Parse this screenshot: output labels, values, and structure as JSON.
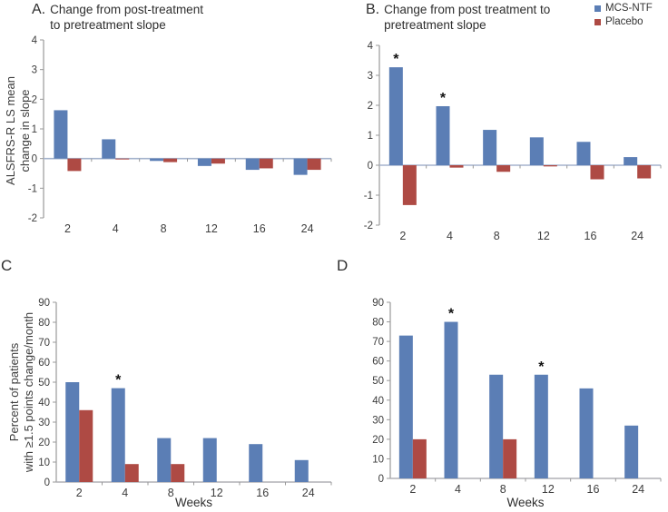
{
  "colors": {
    "mcs_ntf": "#5b7eb5",
    "placebo": "#ae4a44",
    "y_axis": "#999999",
    "zero_line_ab": "#a5b3cd",
    "axis_line_cd": "#b0b0b5",
    "star": "#111111"
  },
  "legend": {
    "items": [
      {
        "label": "MCS-NTF",
        "color": "#5b7eb5"
      },
      {
        "label": "Placebo",
        "color": "#ae4a44"
      }
    ]
  },
  "chart_data": [
    {
      "id": "A",
      "type": "bar",
      "letter": "A.",
      "title_lines": [
        "Change from post-treatment",
        "to pretreatment slope"
      ],
      "ylabel_lines": [
        "ALSFRS-R LS mean",
        "change in slope"
      ],
      "xlabel": "",
      "categories": [
        "2",
        "4",
        "8",
        "12",
        "16",
        "24"
      ],
      "ylim": [
        -2,
        4
      ],
      "yticks": [
        4,
        3,
        2,
        1,
        0,
        -1,
        -2
      ],
      "axis_color": "#a5b3cd",
      "legend_position": "none",
      "grid": false,
      "series": [
        {
          "name": "MCS-NTF",
          "values": [
            1.63,
            0.65,
            -0.08,
            -0.25,
            -0.38,
            -0.55
          ],
          "star_indices": []
        },
        {
          "name": "Placebo",
          "values": [
            -0.42,
            -0.03,
            -0.12,
            -0.17,
            -0.33,
            -0.38
          ],
          "star_indices": []
        }
      ]
    },
    {
      "id": "B",
      "type": "bar",
      "letter": "B.",
      "title_lines": [
        "Change from post treatment to",
        "pretreatment slope"
      ],
      "ylabel_lines": [],
      "xlabel": "",
      "categories": [
        "2",
        "4",
        "8",
        "12",
        "16",
        "24"
      ],
      "ylim": [
        -2,
        4
      ],
      "yticks": [
        4,
        3,
        2,
        1,
        0,
        -1,
        -2
      ],
      "axis_color": "#a5b3cd",
      "legend_position": "top-right",
      "grid": false,
      "series": [
        {
          "name": "MCS-NTF",
          "values": [
            3.27,
            1.97,
            1.18,
            0.93,
            0.78,
            0.27
          ],
          "star_indices": [
            0,
            1
          ]
        },
        {
          "name": "Placebo",
          "values": [
            -1.33,
            -0.08,
            -0.22,
            -0.04,
            -0.47,
            -0.44
          ],
          "star_indices": []
        }
      ]
    },
    {
      "id": "C",
      "type": "bar",
      "letter": "C",
      "title_lines": [],
      "ylabel_lines": [
        "Percent of patients",
        "with ≥1.5 points change/month"
      ],
      "xlabel": "Weeks",
      "categories": [
        "2",
        "4",
        "8",
        "12",
        "16",
        "24"
      ],
      "ylim": [
        0,
        90
      ],
      "yticks": [
        90,
        80,
        70,
        60,
        50,
        40,
        30,
        20,
        10,
        0
      ],
      "axis_color": "#b0b0b5",
      "legend_position": "none",
      "grid": false,
      "series": [
        {
          "name": "MCS-NTF",
          "values": [
            50,
            47,
            22,
            22,
            19,
            11
          ],
          "star_indices": [
            1
          ]
        },
        {
          "name": "Placebo",
          "values": [
            36,
            9,
            9,
            0,
            0,
            0
          ],
          "star_indices": []
        }
      ]
    },
    {
      "id": "D",
      "type": "bar",
      "letter": "D",
      "title_lines": [],
      "ylabel_lines": [],
      "xlabel": "Weeks",
      "categories": [
        "2",
        "4",
        "8",
        "12",
        "16",
        "24"
      ],
      "ylim": [
        0,
        90
      ],
      "yticks": [
        90,
        80,
        70,
        60,
        50,
        40,
        30,
        20,
        10,
        0
      ],
      "axis_color": "#b0b0b5",
      "legend_position": "none",
      "grid": false,
      "series": [
        {
          "name": "MCS-NTF",
          "values": [
            73,
            80,
            53,
            53,
            46,
            27
          ],
          "star_indices": [
            1,
            3
          ]
        },
        {
          "name": "Placebo",
          "values": [
            20,
            0,
            20,
            0,
            0,
            0
          ],
          "star_indices": []
        }
      ]
    }
  ]
}
